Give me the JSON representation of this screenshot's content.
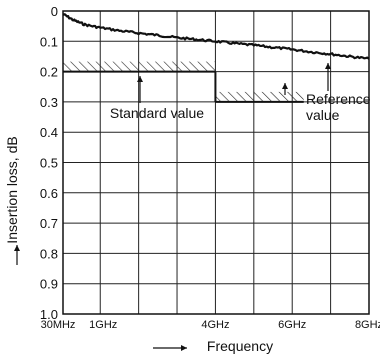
{
  "chart_data": {
    "type": "line",
    "title": "",
    "xlabel": "Frequency",
    "ylabel": "Insertion loss, dB",
    "x_unit": "GHz",
    "xlim": [
      0.03,
      8
    ],
    "ylim": [
      0,
      1.0
    ],
    "y_inverted": true,
    "grid": true,
    "x_ticks": [
      {
        "value": 0.03,
        "label": "30MHz"
      },
      {
        "value": 1,
        "label": "1GHz"
      },
      {
        "value": 4,
        "label": "4GHz"
      },
      {
        "value": 6,
        "label": "6GHz"
      },
      {
        "value": 8,
        "label": "8GHz"
      }
    ],
    "x_grid": [
      0.03,
      1,
      2,
      3,
      4,
      5,
      6,
      7,
      8
    ],
    "y_ticks": [
      "0",
      "0.1",
      "0.2",
      "0.3",
      "0.4",
      "0.5",
      "0.6",
      "0.7",
      "0.8",
      "0.9",
      "1.0"
    ],
    "y_tick_values": [
      0,
      0.1,
      0.2,
      0.3,
      0.4,
      0.5,
      0.6,
      0.7,
      0.8,
      0.9,
      1.0
    ],
    "series": [
      {
        "x": [
          0.03,
          0.3,
          0.6,
          1,
          1.5,
          2,
          2.5,
          3,
          3.5,
          4,
          4.5,
          5,
          5.5,
          6,
          6.5,
          7,
          7.5,
          8
        ],
        "y": [
          0.01,
          0.03,
          0.045,
          0.055,
          0.065,
          0.073,
          0.08,
          0.088,
          0.094,
          0.1,
          0.107,
          0.113,
          0.12,
          0.127,
          0.135,
          0.142,
          0.15,
          0.158
        ]
      }
    ],
    "standard_value": {
      "label": "Standard value",
      "x_range": [
        0.03,
        4
      ],
      "y": 0.2
    },
    "reference_value": {
      "label_line1": "Reference",
      "label_line2": "value",
      "x_range": [
        4,
        6.3
      ],
      "y": 0.3
    }
  }
}
